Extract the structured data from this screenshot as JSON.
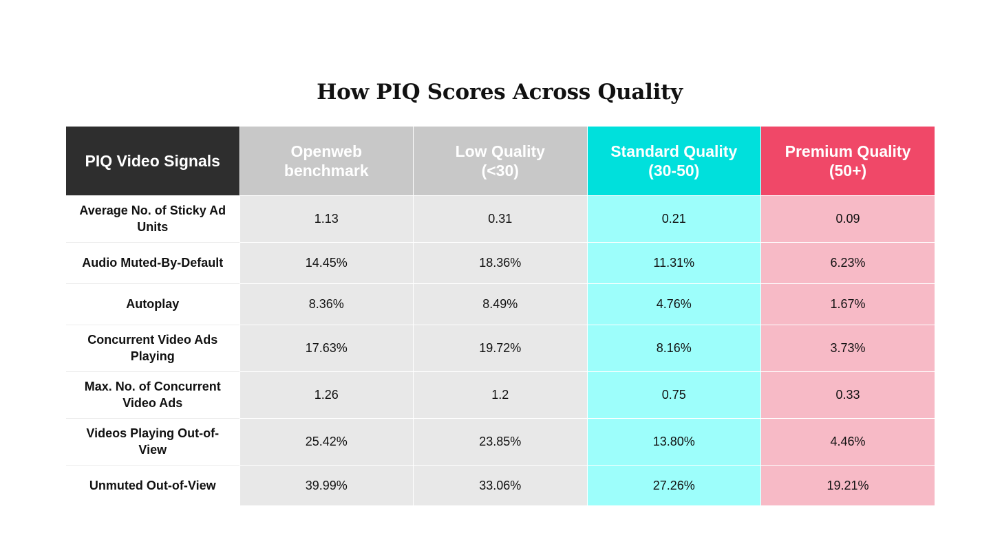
{
  "title": "How PIQ Scores Across Quality",
  "colors": {
    "header_signal": "#2e2e2e",
    "header_gray": "#c8c8c8",
    "header_standard": "#00e0dc",
    "header_premium": "#f04868",
    "cell_gray": "#e8e8e8",
    "cell_standard": "#9dfefb",
    "cell_premium": "#f7bac6"
  },
  "table": {
    "headers": [
      "PIQ Video Signals",
      "Openweb\nbenchmark",
      "Low Quality\n(<30)",
      "Standard Quality\n(30-50)",
      "Premium Quality\n(50+)"
    ],
    "rows": [
      {
        "label": "Average No. of Sticky Ad Units",
        "values": [
          "1.13",
          "0.31",
          "0.21",
          "0.09"
        ]
      },
      {
        "label": "Audio Muted-By-Default",
        "values": [
          "14.45%",
          "18.36%",
          "11.31%",
          "6.23%"
        ]
      },
      {
        "label": "Autoplay",
        "values": [
          "8.36%",
          "8.49%",
          "4.76%",
          "1.67%"
        ]
      },
      {
        "label": "Concurrent Video Ads Playing",
        "values": [
          "17.63%",
          "19.72%",
          "8.16%",
          "3.73%"
        ]
      },
      {
        "label": "Max. No. of Concurrent Video Ads",
        "values": [
          "1.26",
          "1.2",
          "0.75",
          "0.33"
        ]
      },
      {
        "label": "Videos Playing Out-of-View",
        "values": [
          "25.42%",
          "23.85%",
          "13.80%",
          "4.46%"
        ]
      },
      {
        "label": "Unmuted Out-of-View",
        "values": [
          "39.99%",
          "33.06%",
          "27.26%",
          "19.21%"
        ]
      }
    ]
  }
}
